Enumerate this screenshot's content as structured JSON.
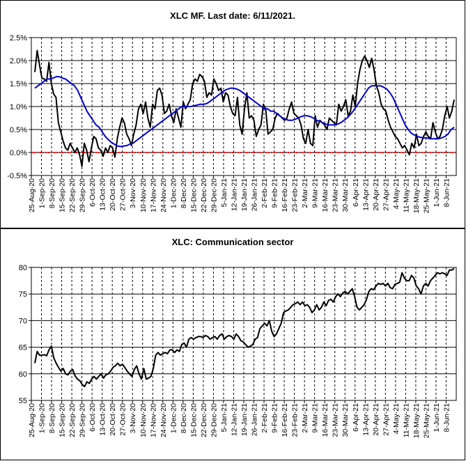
{
  "chart_data": [
    {
      "type": "line",
      "title": "XLC MF. Last date: 6/11/2021.",
      "y_tick_labels": [
        "-0.5%",
        "0.0%",
        "0.5%",
        "1.0%",
        "1.5%",
        "2.0%",
        "2.5%"
      ],
      "ylim": [
        -0.5,
        2.5
      ],
      "y_unit": "percent",
      "x_tick_labels": [
        "25-Aug-20",
        "1-Sep-20",
        "8-Sep-20",
        "15-Sep-20",
        "22-Sep-20",
        "29-Sep-20",
        "6-Oct-20",
        "13-Oct-20",
        "20-Oct-20",
        "27-Oct-20",
        "3-Nov-20",
        "10-Nov-20",
        "17-Nov-20",
        "24-Nov-20",
        "1-Dec-20",
        "8-Dec-20",
        "15-Dec-20",
        "22-Dec-20",
        "29-Dec-20",
        "5-Jan-21",
        "12-Jan-21",
        "19-Jan-21",
        "26-Jan-21",
        "2-Feb-21",
        "9-Feb-21",
        "16-Feb-21",
        "23-Feb-21",
        "2-Mar-21",
        "9-Mar-21",
        "16-Mar-21",
        "23-Mar-21",
        "30-Mar-21",
        "6-Apr-21",
        "13-Apr-21",
        "20-Apr-21",
        "27-Apr-21",
        "4-May-21",
        "11-May-21",
        "18-May-21",
        "25-May-21",
        "1-Jun-21",
        "8-Jun-21"
      ],
      "grid": true,
      "reference_line": {
        "y": 0,
        "color": "#ff0000",
        "style": "dotted"
      },
      "series": [
        {
          "color": "#000000",
          "values": [
            1.75,
            2.22,
            1.9,
            1.62,
            1.6,
            1.55,
            1.96,
            1.5,
            1.27,
            1.2,
            0.65,
            0.45,
            0.25,
            0.1,
            0.05,
            0.2,
            0.1,
            0.0,
            0.1,
            -0.05,
            -0.3,
            0.2,
            0.05,
            -0.2,
            0.1,
            0.35,
            0.3,
            0.1,
            0.05,
            -0.08,
            0.1,
            0.0,
            0.15,
            0.1,
            -0.1,
            0.3,
            0.55,
            0.75,
            0.65,
            0.4,
            0.3,
            0.15,
            0.4,
            0.6,
            0.95,
            1.05,
            0.85,
            1.1,
            0.75,
            0.55,
            1.05,
            0.95,
            1.35,
            1.4,
            1.25,
            0.85,
            0.9,
            1.05,
            0.8,
            0.65,
            0.95,
            0.75,
            0.55,
            1.1,
            0.95,
            1.05,
            1.15,
            1.5,
            1.6,
            1.55,
            1.7,
            1.65,
            1.55,
            1.2,
            1.3,
            1.25,
            1.6,
            1.5,
            1.35,
            1.4,
            1.1,
            1.3,
            1.25,
            1.0,
            0.85,
            0.8,
            1.2,
            0.6,
            0.4,
            0.95,
            1.3,
            0.75,
            0.8,
            0.7,
            0.35,
            0.5,
            0.6,
            1.05,
            0.95,
            0.4,
            0.45,
            0.5,
            0.75,
            0.85,
            0.8,
            0.75,
            0.7,
            0.75,
            0.95,
            1.1,
            0.85,
            0.8,
            0.75,
            0.6,
            0.3,
            0.2,
            0.5,
            0.2,
            0.15,
            0.8,
            0.55,
            0.7,
            0.65,
            0.6,
            0.5,
            0.75,
            0.7,
            0.65,
            0.6,
            1.05,
            0.9,
            1.0,
            1.15,
            0.8,
            0.9,
            1.25,
            1.0,
            1.5,
            1.8,
            2.0,
            2.1,
            2.0,
            1.85,
            2.05,
            1.8,
            1.45,
            1.3,
            1.05,
            0.95,
            0.9,
            0.7,
            0.55,
            0.45,
            0.35,
            0.3,
            0.2,
            0.1,
            0.15,
            0.05,
            -0.05,
            0.2,
            0.1,
            0.4,
            0.15,
            0.2,
            0.35,
            0.45,
            0.35,
            0.3,
            0.65,
            0.45,
            0.3,
            0.35,
            0.5,
            0.8,
            1.0,
            0.75,
            0.9,
            1.15
          ]
        },
        {
          "color": "#0000cc",
          "values": [
            1.4,
            1.45,
            1.5,
            1.55,
            1.6,
            1.6,
            1.62,
            1.65,
            1.65,
            1.62,
            1.6,
            1.55,
            1.5,
            1.45,
            1.35,
            1.2,
            1.05,
            0.9,
            0.8,
            0.7,
            0.6,
            0.55,
            0.45,
            0.35,
            0.28,
            0.22,
            0.18,
            0.14,
            0.13,
            0.14,
            0.15,
            0.18,
            0.2,
            0.25,
            0.3,
            0.35,
            0.4,
            0.45,
            0.5,
            0.55,
            0.6,
            0.65,
            0.7,
            0.75,
            0.8,
            0.85,
            0.9,
            0.95,
            1.0,
            1.0,
            1.0,
            1.0,
            1.02,
            1.03,
            1.05,
            1.05,
            1.06,
            1.1,
            1.15,
            1.2,
            1.25,
            1.3,
            1.35,
            1.38,
            1.4,
            1.4,
            1.38,
            1.35,
            1.3,
            1.25,
            1.2,
            1.15,
            1.1,
            1.05,
            1.0,
            0.95,
            0.95,
            0.9,
            0.9,
            0.85,
            0.8,
            0.75,
            0.72,
            0.7,
            0.7,
            0.72,
            0.75,
            0.78,
            0.8,
            0.8,
            0.78,
            0.75,
            0.7,
            0.68,
            0.65,
            0.62,
            0.6,
            0.6,
            0.6,
            0.62,
            0.65,
            0.7,
            0.75,
            0.82,
            0.9,
            1.0,
            1.1,
            1.2,
            1.3,
            1.4,
            1.45,
            1.45,
            1.45,
            1.45,
            1.42,
            1.38,
            1.3,
            1.2,
            1.05,
            0.9,
            0.75,
            0.6,
            0.5,
            0.42,
            0.38,
            0.35,
            0.33,
            0.32,
            0.32,
            0.3,
            0.3,
            0.3,
            0.3,
            0.32,
            0.35,
            0.4,
            0.5,
            0.55
          ]
        }
      ]
    },
    {
      "type": "line",
      "title": "XLC: Communication sector",
      "y_tick_labels": [
        "55",
        "60",
        "65",
        "70",
        "75",
        "80"
      ],
      "ylim": [
        55,
        80
      ],
      "x_tick_labels": [
        "25-Aug-20",
        "1-Sep-20",
        "8-Sep-20",
        "15-Sep-20",
        "22-Sep-20",
        "29-Sep-20",
        "6-Oct-20",
        "13-Oct-20",
        "20-Oct-20",
        "27-Oct-20",
        "3-Nov-20",
        "10-Nov-20",
        "17-Nov-20",
        "24-Nov-20",
        "1-Dec-20",
        "8-Dec-20",
        "15-Dec-20",
        "22-Dec-20",
        "29-Dec-20",
        "5-Jan-21",
        "12-Jan-21",
        "19-Jan-21",
        "26-Jan-21",
        "2-Feb-21",
        "9-Feb-21",
        "16-Feb-21",
        "23-Feb-21",
        "2-Mar-21",
        "9-Mar-21",
        "16-Mar-21",
        "23-Mar-21",
        "30-Mar-21",
        "6-Apr-21",
        "13-Apr-21",
        "20-Apr-21",
        "27-Apr-21",
        "4-May-21",
        "11-May-21",
        "18-May-21",
        "25-May-21",
        "1-Jun-21",
        "8-Jun-21"
      ],
      "grid": true,
      "series": [
        {
          "color": "#000000",
          "values": [
            62.0,
            64.2,
            63.5,
            63.5,
            63.6,
            63.4,
            64.5,
            65.2,
            63.0,
            62.0,
            61.2,
            60.5,
            61.0,
            60.0,
            59.8,
            60.5,
            60.8,
            59.6,
            59.0,
            58.7,
            58.0,
            57.6,
            58.5,
            58.2,
            59.0,
            59.5,
            59.0,
            59.5,
            60.0,
            59.2,
            59.8,
            60.0,
            60.5,
            61.2,
            61.5,
            62.0,
            61.5,
            61.8,
            61.2,
            60.5,
            60.0,
            59.5,
            60.8,
            61.5,
            60.0,
            59.0,
            61.0,
            59.0,
            59.2,
            59.5,
            61.0,
            63.5,
            64.0,
            63.5,
            63.8,
            64.0,
            63.8,
            64.5,
            64.5,
            64.0,
            64.5,
            64.2,
            65.5,
            65.8,
            65.0,
            66.5,
            66.8,
            66.5,
            66.8,
            67.0,
            67.0,
            66.8,
            67.2,
            67.0,
            66.5,
            66.8,
            67.0,
            66.5,
            67.2,
            67.5,
            66.5,
            67.0,
            67.2,
            67.0,
            66.5,
            67.5,
            67.0,
            66.2,
            66.0,
            65.5,
            65.0,
            65.2,
            65.5,
            66.5,
            66.8,
            68.5,
            69.0,
            69.5,
            69.0,
            70.0,
            68.0,
            67.0,
            67.5,
            68.5,
            69.5,
            71.5,
            71.8,
            72.0,
            72.5,
            73.0,
            73.2,
            73.5,
            73.0,
            73.5,
            72.8,
            73.0,
            72.5,
            71.5,
            72.0,
            73.0,
            72.0,
            72.5,
            73.5,
            72.8,
            73.8,
            74.0,
            73.5,
            74.5,
            75.0,
            74.5,
            75.2,
            75.5,
            75.0,
            75.5,
            76.0,
            74.5,
            72.5,
            72.0,
            72.5,
            73.0,
            74.0,
            75.5,
            76.0,
            75.8,
            76.5,
            77.0,
            76.8,
            77.0,
            76.5,
            77.0,
            76.2,
            76.0,
            76.8,
            77.0,
            77.2,
            79.0,
            78.0,
            77.5,
            77.5,
            78.5,
            78.0,
            76.5,
            76.0,
            75.0,
            76.5,
            77.0,
            76.5,
            77.5,
            78.0,
            78.5,
            79.0,
            78.8,
            79.0,
            78.8,
            78.5,
            79.5,
            79.5,
            79.8
          ]
        }
      ]
    }
  ]
}
